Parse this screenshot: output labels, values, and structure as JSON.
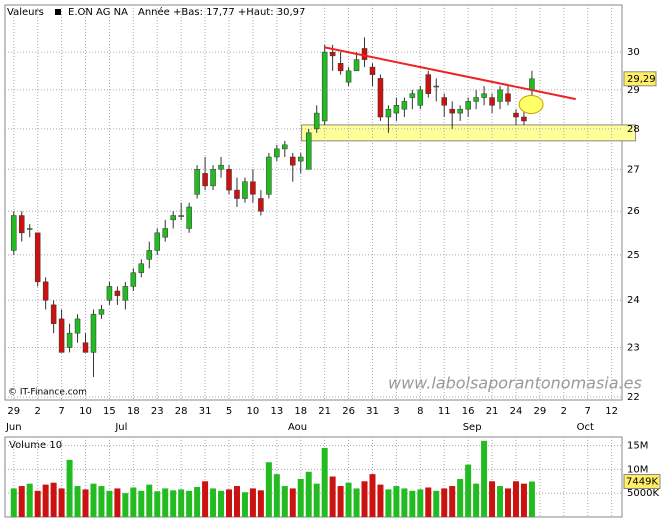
{
  "header": {
    "label": "Valeurs",
    "instrument": "E.ON AG NA",
    "range": "Année +Bas: 17,77 +Haut: 30,97"
  },
  "copyright": "© IT-Finance.com",
  "watermark": "www.labolsaporantonomasia.es",
  "chart_data": [
    {
      "type": "candlestick",
      "log_scale": true,
      "grid": true,
      "up_color": "#22bb22",
      "down_color": "#cc1111",
      "xlim": [
        -1.1,
        76.3
      ],
      "ylim": [
        21.94,
        31.3
      ],
      "yticks": [
        22,
        23,
        24,
        25,
        26,
        27,
        28,
        29,
        30
      ],
      "xticks": [
        {
          "value": 0,
          "label": "29"
        },
        {
          "value": 3,
          "label": "2"
        },
        {
          "value": 6,
          "label": "7"
        },
        {
          "value": 9,
          "label": "10"
        },
        {
          "value": 12,
          "label": "15"
        },
        {
          "value": 15,
          "label": "18"
        },
        {
          "value": 18,
          "label": "23"
        },
        {
          "value": 21,
          "label": "28"
        },
        {
          "value": 24,
          "label": "31"
        },
        {
          "value": 27,
          "label": "5"
        },
        {
          "value": 30,
          "label": "10"
        },
        {
          "value": 33,
          "label": "13"
        },
        {
          "value": 36,
          "label": "18"
        },
        {
          "value": 39,
          "label": "21"
        },
        {
          "value": 42,
          "label": "26"
        },
        {
          "value": 45,
          "label": "31"
        },
        {
          "value": 48,
          "label": "3"
        },
        {
          "value": 51,
          "label": "8"
        },
        {
          "value": 54,
          "label": "11"
        },
        {
          "value": 57,
          "label": "16"
        },
        {
          "value": 60,
          "label": "21"
        },
        {
          "value": 63,
          "label": "24"
        },
        {
          "value": 66,
          "label": "29"
        },
        {
          "value": 69,
          "label": "2"
        },
        {
          "value": 72,
          "label": "7"
        },
        {
          "value": 75,
          "label": "12"
        }
      ],
      "month_ticks": [
        {
          "value": 0,
          "label": "Jun"
        },
        {
          "value": 13.5,
          "label": "Jul"
        },
        {
          "value": 35.6,
          "label": "Aou"
        },
        {
          "value": 57.5,
          "label": "Sep"
        },
        {
          "value": 71.7,
          "label": "Oct"
        }
      ],
      "open": [
        25.1,
        25.9,
        25.6,
        25.5,
        24.4,
        23.9,
        23.6,
        23.0,
        23.3,
        23.1,
        22.9,
        23.7,
        24.0,
        24.2,
        24.0,
        24.3,
        24.6,
        24.9,
        25.1,
        25.4,
        25.8,
        25.9,
        25.6,
        26.4,
        26.9,
        26.6,
        27.0,
        27.0,
        26.5,
        26.3,
        26.7,
        26.3,
        26.4,
        27.3,
        27.5,
        27.3,
        27.2,
        27.0,
        28.0,
        28.2,
        30.0,
        29.7,
        29.2,
        29.5,
        30.1,
        29.6,
        29.3,
        28.3,
        28.4,
        28.5,
        28.8,
        28.6,
        29.4,
        29.1,
        28.8,
        28.5,
        28.4,
        28.5,
        28.7,
        28.8,
        28.8,
        28.7,
        28.9,
        28.4,
        28.3,
        29.0
      ],
      "high": [
        26.0,
        26.0,
        25.7,
        25.5,
        24.5,
        24.0,
        23.8,
        23.5,
        23.7,
        23.3,
        23.8,
        23.9,
        24.4,
        24.3,
        24.4,
        24.7,
        24.9,
        25.3,
        25.6,
        25.8,
        26.0,
        26.2,
        26.2,
        27.1,
        27.3,
        27.1,
        27.3,
        27.1,
        26.8,
        26.8,
        27.0,
        26.5,
        27.4,
        27.6,
        27.7,
        27.4,
        27.4,
        28.0,
        28.6,
        30.2,
        30.2,
        30.0,
        29.6,
        30.0,
        30.4,
        29.7,
        29.4,
        28.6,
        28.8,
        28.8,
        29.0,
        29.1,
        29.5,
        29.3,
        28.9,
        28.7,
        28.6,
        28.8,
        29.0,
        29.1,
        28.9,
        29.1,
        29.1,
        28.5,
        28.6,
        29.5
      ],
      "low": [
        25.0,
        25.3,
        25.4,
        24.3,
        23.8,
        23.3,
        22.9,
        22.9,
        23.1,
        22.9,
        22.4,
        23.6,
        23.9,
        23.9,
        23.8,
        24.2,
        24.5,
        24.7,
        25.0,
        25.3,
        25.6,
        25.8,
        25.5,
        26.3,
        26.5,
        26.5,
        26.8,
        26.4,
        26.1,
        26.2,
        26.2,
        25.9,
        26.3,
        27.2,
        27.3,
        26.7,
        26.9,
        27.0,
        27.9,
        28.1,
        29.5,
        29.4,
        29.1,
        29.5,
        29.6,
        29.1,
        28.2,
        27.9,
        28.2,
        28.3,
        28.5,
        28.5,
        28.8,
        28.7,
        28.3,
        28.0,
        28.2,
        28.3,
        28.5,
        28.6,
        28.4,
        28.5,
        28.6,
        28.1,
        28.1,
        28.8
      ],
      "close": [
        25.9,
        25.5,
        25.6,
        24.4,
        24.0,
        23.5,
        22.9,
        23.3,
        23.6,
        22.9,
        23.7,
        23.8,
        24.3,
        24.1,
        24.3,
        24.6,
        24.8,
        25.1,
        25.5,
        25.6,
        25.9,
        25.9,
        26.1,
        27.0,
        26.6,
        27.0,
        27.1,
        26.5,
        26.3,
        26.7,
        26.4,
        26.0,
        27.3,
        27.5,
        27.6,
        27.1,
        27.3,
        27.9,
        28.4,
        30.0,
        29.9,
        29.5,
        29.5,
        29.8,
        29.8,
        29.4,
        28.3,
        28.5,
        28.6,
        28.7,
        28.9,
        29.0,
        28.9,
        29.1,
        28.6,
        28.4,
        28.5,
        28.7,
        28.8,
        28.9,
        28.6,
        29.0,
        28.7,
        28.3,
        28.2,
        29.29
      ],
      "last_close_label": "29,29",
      "trendline": {
        "color": "#ee2222",
        "x": [
          39,
          70.5
        ],
        "y": [
          30.13,
          28.76
        ]
      },
      "support_band": {
        "color": "#ffff99",
        "x": [
          36.1,
          78
        ],
        "y": [
          27.7,
          28.1
        ]
      },
      "highlight": {
        "color": "#ffff66",
        "x": 64.9,
        "y": 28.62
      }
    },
    {
      "type": "bar",
      "legend": "Volume 10",
      "up_color": "#22bb22",
      "down_color": "#cc1111",
      "xlim": [
        -1.1,
        76.3
      ],
      "ylim": [
        0,
        16800000
      ],
      "yticks": [
        {
          "value": 15000000,
          "label": "15M"
        },
        {
          "value": 10000000,
          "label": "10M"
        },
        {
          "value": 5000000,
          "label": "5000K"
        }
      ],
      "values": [
        6000000,
        6500000,
        7000000,
        5500000,
        6800000,
        7200000,
        6000000,
        12000000,
        6500000,
        5800000,
        7000000,
        6500000,
        5500000,
        6000000,
        5000000,
        6200000,
        5500000,
        6800000,
        5400000,
        6000000,
        5600000,
        5800000,
        5500000,
        6300000,
        7500000,
        6000000,
        5500000,
        5800000,
        6500000,
        5200000,
        6000000,
        5600000,
        11500000,
        9000000,
        6500000,
        6000000,
        8000000,
        9500000,
        7000000,
        14500000,
        8500000,
        6500000,
        7200000,
        6000000,
        7500000,
        9000000,
        6800000,
        5800000,
        6500000,
        6000000,
        5500000,
        5800000,
        6200000,
        5500000,
        6000000,
        6500000,
        8000000,
        11000000,
        7000000,
        16000000,
        7500000,
        6500000,
        6000000,
        7500000,
        7000000,
        7449000
      ],
      "last_value_label": "7449K"
    }
  ]
}
